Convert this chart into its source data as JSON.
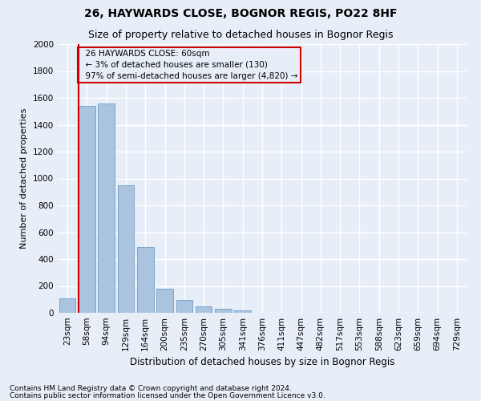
{
  "title1": "26, HAYWARDS CLOSE, BOGNOR REGIS, PO22 8HF",
  "title2": "Size of property relative to detached houses in Bognor Regis",
  "xlabel": "Distribution of detached houses by size in Bognor Regis",
  "ylabel": "Number of detached properties",
  "categories": [
    "23sqm",
    "58sqm",
    "94sqm",
    "129sqm",
    "164sqm",
    "200sqm",
    "235sqm",
    "270sqm",
    "305sqm",
    "341sqm",
    "376sqm",
    "411sqm",
    "447sqm",
    "482sqm",
    "517sqm",
    "553sqm",
    "588sqm",
    "623sqm",
    "659sqm",
    "694sqm",
    "729sqm"
  ],
  "values": [
    110,
    1540,
    1560,
    950,
    490,
    180,
    95,
    45,
    30,
    20,
    0,
    0,
    0,
    0,
    0,
    0,
    0,
    0,
    0,
    0,
    0
  ],
  "bar_color": "#aac4e0",
  "bar_edge_color": "#5a8fc0",
  "vline_color": "#cc0000",
  "annotation_text": "  26 HAYWARDS CLOSE: 60sqm\n  ← 3% of detached houses are smaller (130)\n  97% of semi-detached houses are larger (4,820) →",
  "ylim": [
    0,
    2000
  ],
  "yticks": [
    0,
    200,
    400,
    600,
    800,
    1000,
    1200,
    1400,
    1600,
    1800,
    2000
  ],
  "footnote1": "Contains HM Land Registry data © Crown copyright and database right 2024.",
  "footnote2": "Contains public sector information licensed under the Open Government Licence v3.0.",
  "fig_background": "#e8eef8",
  "plot_background": "#e8eef8",
  "grid_color": "#ffffff",
  "title1_fontsize": 10,
  "title2_fontsize": 9,
  "xlabel_fontsize": 8.5,
  "ylabel_fontsize": 8,
  "tick_fontsize": 7.5,
  "footnote_fontsize": 6.5,
  "ann_fontsize": 7.5
}
